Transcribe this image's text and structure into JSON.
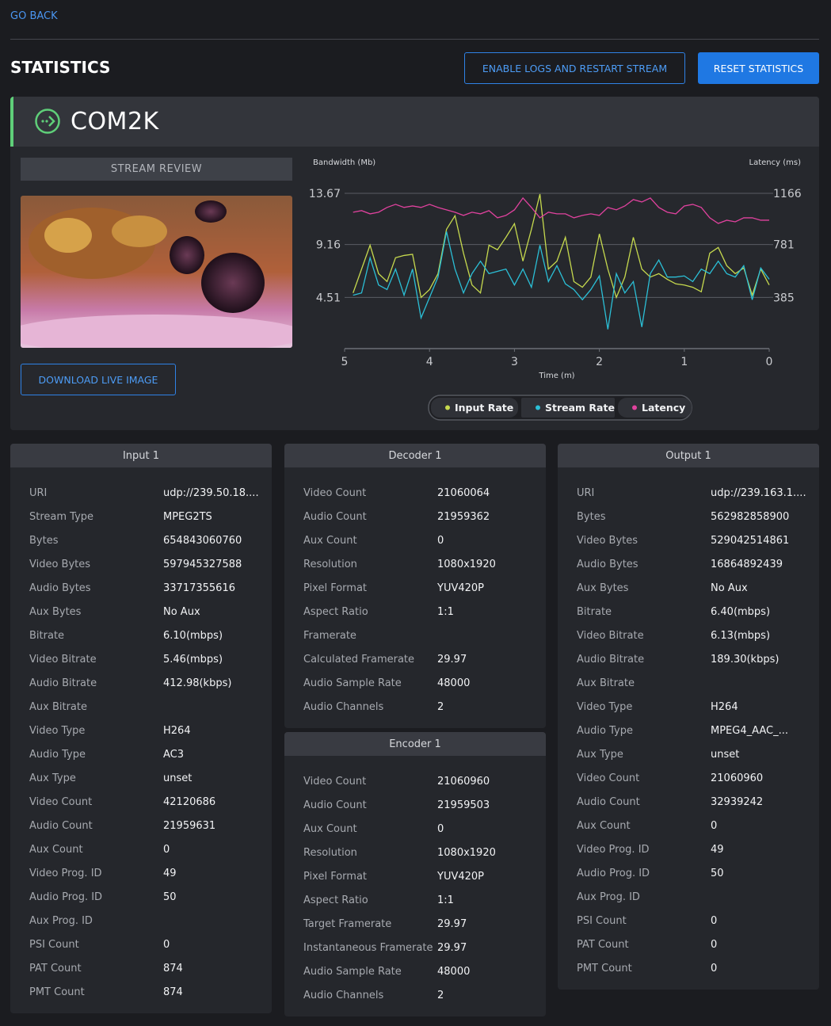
{
  "header": {
    "back": "GO BACK",
    "title": "STATISTICS",
    "buttons": [
      "ENABLE LOGS AND RESTART STREAM",
      "RESET STATISTICS"
    ]
  },
  "stream": {
    "name": "COM2K",
    "review_label": "STREAM REVIEW",
    "download": "DOWNLOAD LIVE IMAGE"
  },
  "chart_data": {
    "type": "line",
    "y_label": "Bandwidth (Mb)",
    "y2_label": "Latency (ms)",
    "x_label": "Time (m)",
    "xlim": [
      5,
      0
    ],
    "xticks": [
      5,
      4,
      3,
      2,
      1,
      0
    ],
    "ylim": [
      0,
      13.67
    ],
    "yticks": [
      4.51,
      9.16,
      13.67
    ],
    "y2lim": [
      0,
      1166
    ],
    "y2ticks": [
      385,
      781,
      1166
    ],
    "grid": true,
    "x": [
      4.9,
      4.8,
      4.7,
      4.6,
      4.5,
      4.4,
      4.3,
      4.2,
      4.1,
      4.0,
      3.9,
      3.8,
      3.7,
      3.6,
      3.5,
      3.4,
      3.3,
      3.2,
      3.1,
      3.0,
      2.9,
      2.8,
      2.7,
      2.6,
      2.5,
      2.4,
      2.3,
      2.2,
      2.1,
      2.0,
      1.9,
      1.8,
      1.7,
      1.6,
      1.5,
      1.4,
      1.3,
      1.2,
      1.1,
      1.0,
      0.9,
      0.8,
      0.7,
      0.6,
      0.5,
      0.4,
      0.3,
      0.2,
      0.1,
      0.0
    ],
    "series": [
      {
        "name": "Input Rate",
        "color": "#c6d94e",
        "values": [
          4.9,
          7.0,
          9.1,
          6.6,
          5.9,
          8.0,
          8.2,
          8.3,
          4.5,
          5.2,
          6.6,
          10.5,
          11.7,
          8.4,
          5.6,
          4.9,
          9.1,
          8.7,
          9.8,
          11.0,
          7.7,
          10.5,
          13.6,
          7.0,
          7.7,
          9.8,
          5.9,
          5.4,
          6.3,
          10.1,
          7.0,
          4.5,
          6.3,
          9.8,
          7.0,
          6.3,
          6.6,
          6.1,
          5.7,
          5.6,
          5.4,
          5.0,
          8.4,
          8.9,
          7.3,
          6.6,
          7.1,
          4.7,
          7.0,
          5.6
        ]
      },
      {
        "name": "Stream Rate",
        "color": "#2bbfd6",
        "values": [
          4.7,
          4.9,
          8.0,
          5.6,
          5.2,
          7.0,
          4.7,
          7.0,
          2.7,
          4.5,
          6.3,
          10.3,
          7.0,
          4.9,
          6.6,
          7.7,
          6.6,
          6.8,
          7.0,
          5.6,
          7.0,
          5.4,
          9.1,
          5.9,
          7.3,
          5.7,
          5.2,
          4.3,
          5.2,
          6.4,
          1.7,
          6.6,
          4.9,
          5.9,
          1.9,
          6.6,
          7.8,
          6.3,
          6.3,
          6.4,
          5.9,
          7.0,
          6.6,
          7.7,
          6.6,
          6.3,
          7.3,
          4.3,
          7.1,
          6.1
        ]
      },
      {
        "name": "Latency",
        "color": "#e0429e",
        "axis": "y2",
        "values": [
          1024,
          1036,
          1012,
          1024,
          1060,
          1083,
          1060,
          1071,
          1060,
          1083,
          1060,
          1042,
          1024,
          1000,
          1024,
          1012,
          1036,
          982,
          1000,
          1042,
          1131,
          1060,
          982,
          1024,
          1012,
          1012,
          982,
          1000,
          1012,
          1000,
          1060,
          1042,
          1071,
          1119,
          1101,
          1131,
          1060,
          1024,
          1012,
          1071,
          1083,
          1060,
          982,
          940,
          964,
          952,
          982,
          982,
          964,
          964
        ]
      }
    ]
  },
  "panels": [
    {
      "title": "Input 1",
      "rows": [
        [
          "URI",
          "udp://239.50.18...."
        ],
        [
          "Stream Type",
          "MPEG2TS"
        ],
        [
          "Bytes",
          "654843060760"
        ],
        [
          "Video Bytes",
          "597945327588"
        ],
        [
          "Audio Bytes",
          "33717355616"
        ],
        [
          "Aux Bytes",
          "No Aux"
        ],
        [
          "Bitrate",
          "6.10(mbps)"
        ],
        [
          "Video Bitrate",
          "5.46(mbps)"
        ],
        [
          "Audio Bitrate",
          "412.98(kbps)"
        ],
        [
          "Aux Bitrate"
        ],
        [
          "Video Type",
          "H264"
        ],
        [
          "Audio Type",
          "AC3"
        ],
        [
          "Aux Type",
          "unset"
        ],
        [
          "Video Count",
          "42120686"
        ],
        [
          "Audio Count",
          "21959631"
        ],
        [
          "Aux Count",
          "0"
        ],
        [
          "Video Prog. ID",
          "49"
        ],
        [
          "Audio Prog. ID",
          "50"
        ],
        [
          "Aux Prog. ID"
        ],
        [
          "PSI Count",
          "0"
        ],
        [
          "PAT Count",
          "874"
        ],
        [
          "PMT Count",
          "874"
        ]
      ]
    },
    {
      "title": "Decoder 1",
      "rows": [
        [
          "Video Count",
          "21060064"
        ],
        [
          "Audio Count",
          "21959362"
        ],
        [
          "Aux Count",
          "0"
        ],
        [
          "Resolution",
          "1080x1920"
        ],
        [
          "Pixel Format",
          "YUV420P"
        ],
        [
          "Aspect Ratio",
          "1:1"
        ],
        [
          "Framerate"
        ],
        [
          "Calculated Framerate",
          "29.97"
        ],
        [
          "Audio Sample Rate",
          "48000"
        ],
        [
          "Audio Channels",
          "2"
        ]
      ]
    },
    {
      "title": "Encoder 1",
      "rows": [
        [
          "Video Count",
          "21060960"
        ],
        [
          "Audio Count",
          "21959503"
        ],
        [
          "Aux Count",
          "0"
        ],
        [
          "Resolution",
          "1080x1920"
        ],
        [
          "Pixel Format",
          "YUV420P"
        ],
        [
          "Aspect Ratio",
          "1:1"
        ],
        [
          "Target Framerate",
          "29.97"
        ],
        [
          "Instantaneous Framerate",
          "29.97"
        ],
        [
          "Audio Sample Rate",
          "48000"
        ],
        [
          "Audio Channels",
          "2"
        ]
      ]
    },
    {
      "title": "Output 1",
      "rows": [
        [
          "URI",
          "udp://239.163.1...."
        ],
        [
          "Bytes",
          "562982858900"
        ],
        [
          "Video Bytes",
          "529042514861"
        ],
        [
          "Audio Bytes",
          "16864892439"
        ],
        [
          "Aux Bytes",
          "No Aux"
        ],
        [
          "Bitrate",
          "6.40(mbps)"
        ],
        [
          "Video Bitrate",
          "6.13(mbps)"
        ],
        [
          "Audio Bitrate",
          "189.30(kbps)"
        ],
        [
          "Aux Bitrate"
        ],
        [
          "Video Type",
          "H264"
        ],
        [
          "Audio Type",
          "MPEG4_AAC_..."
        ],
        [
          "Aux Type",
          "unset"
        ],
        [
          "Video Count",
          "21060960"
        ],
        [
          "Audio Count",
          "32939242"
        ],
        [
          "Aux Count",
          "0"
        ],
        [
          "Video Prog. ID",
          "49"
        ],
        [
          "Audio Prog. ID",
          "50"
        ],
        [
          "Aux Prog. ID"
        ],
        [
          "PSI Count",
          "0"
        ],
        [
          "PAT Count",
          "0"
        ],
        [
          "PMT Count",
          "0"
        ]
      ]
    }
  ]
}
